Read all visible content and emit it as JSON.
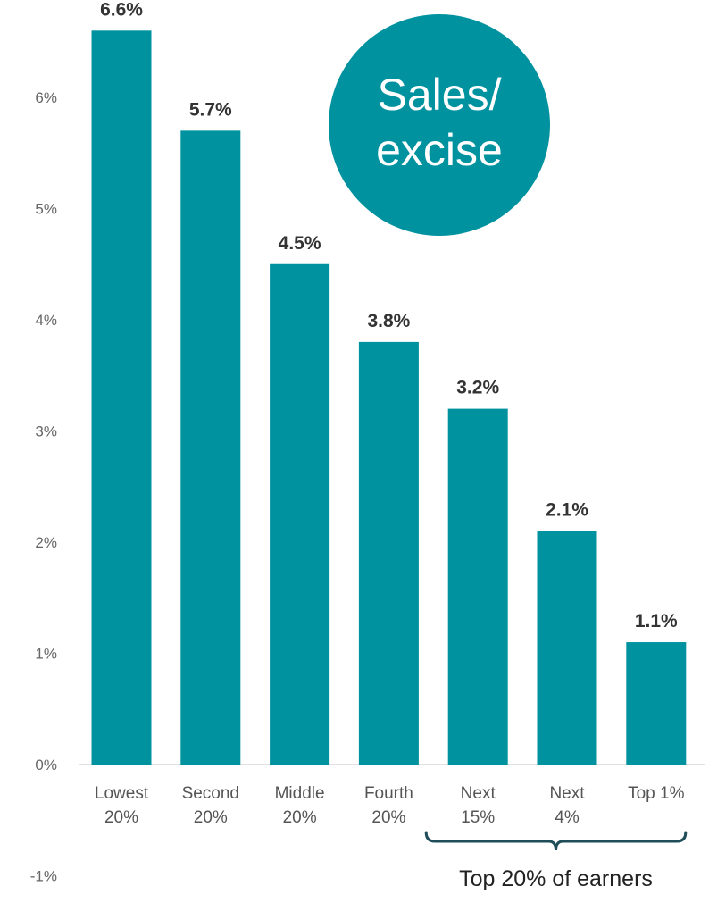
{
  "chart_data": {
    "type": "bar",
    "categories": [
      [
        "Lowest",
        "20%"
      ],
      [
        "Second",
        "20%"
      ],
      [
        "Middle",
        "20%"
      ],
      [
        "Fourth",
        "20%"
      ],
      [
        "Next",
        "15%"
      ],
      [
        "Next",
        "4%"
      ],
      [
        "Top 1%"
      ]
    ],
    "values": [
      6.6,
      5.7,
      4.5,
      3.8,
      3.2,
      2.1,
      1.1
    ],
    "value_labels": [
      "6.6%",
      "5.7%",
      "4.5%",
      "3.8%",
      "3.2%",
      "2.1%",
      "1.1%"
    ],
    "ylim": [
      -1,
      7
    ],
    "yticks": [
      -1,
      0,
      1,
      2,
      3,
      4,
      5,
      6
    ],
    "ytick_labels": [
      "-1%",
      "0%",
      "1%",
      "2%",
      "3%",
      "4%",
      "5%",
      "6%"
    ],
    "grid": false,
    "bar_color": "#00929f",
    "title": "",
    "xlabel": "",
    "ylabel": ""
  },
  "badge": {
    "lines": [
      "Sales/",
      "excise"
    ],
    "color": "#00929f"
  },
  "bracket": {
    "label": "Top 20% of earners",
    "color": "#1f4e5a",
    "from_category": 4,
    "to_category": 6
  }
}
